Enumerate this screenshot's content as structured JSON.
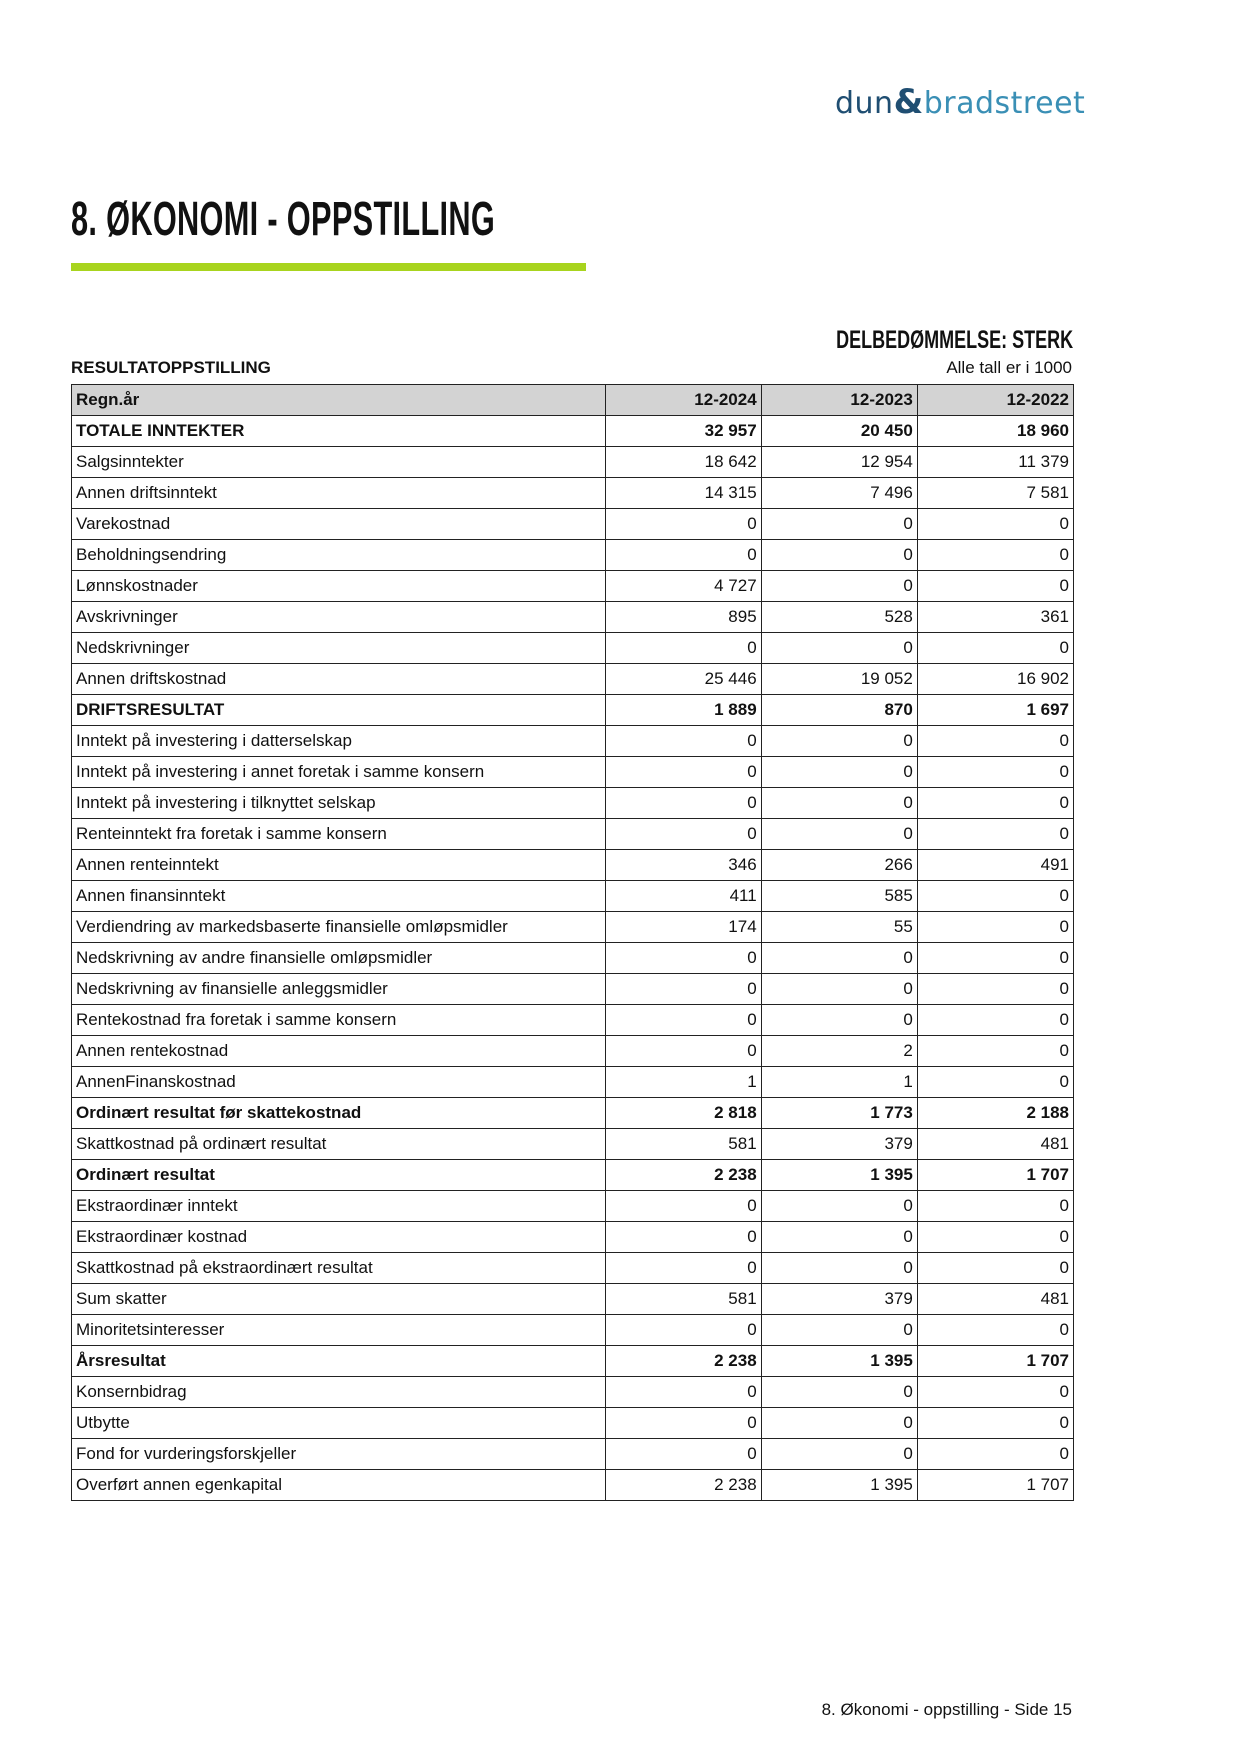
{
  "logo": {
    "text": "dun&bradstreet",
    "part1": "dun",
    "amp": "&",
    "part2": "bradstreet",
    "colors": {
      "dark": "#1f4e72",
      "light": "#3a8fb5"
    }
  },
  "page_title": "8. ØKONOMI - OPPSTILLING",
  "accent_color": "#a8d41e",
  "rating": "DELBEDØMMELSE: STERK",
  "section_title": "RESULTATOPPSTILLING",
  "units_note": "Alle tall er i 1000",
  "table": {
    "headers": [
      "Regn.år",
      "12-2024",
      "12-2023",
      "12-2022"
    ],
    "rows": [
      {
        "label": "TOTALE INNTEKTER",
        "bold": true,
        "values": [
          "32 957",
          "20 450",
          "18 960"
        ]
      },
      {
        "label": "Salgsinntekter",
        "values": [
          "18 642",
          "12 954",
          "11 379"
        ]
      },
      {
        "label": "Annen driftsinntekt",
        "values": [
          "14 315",
          "7 496",
          "7 581"
        ]
      },
      {
        "label": "Varekostnad",
        "values": [
          "0",
          "0",
          "0"
        ]
      },
      {
        "label": "Beholdningsendring",
        "values": [
          "0",
          "0",
          "0"
        ]
      },
      {
        "label": "Lønnskostnader",
        "values": [
          "4 727",
          "0",
          "0"
        ]
      },
      {
        "label": "Avskrivninger",
        "values": [
          "895",
          "528",
          "361"
        ]
      },
      {
        "label": "Nedskrivninger",
        "values": [
          "0",
          "0",
          "0"
        ]
      },
      {
        "label": "Annen driftskostnad",
        "values": [
          "25 446",
          "19 052",
          "16 902"
        ]
      },
      {
        "label": "DRIFTSRESULTAT",
        "bold": true,
        "values": [
          "1 889",
          "870",
          "1 697"
        ]
      },
      {
        "label": "Inntekt på investering i datterselskap",
        "values": [
          "0",
          "0",
          "0"
        ]
      },
      {
        "label": "Inntekt på investering i annet foretak i samme konsern",
        "values": [
          "0",
          "0",
          "0"
        ]
      },
      {
        "label": "Inntekt på investering i tilknyttet selskap",
        "values": [
          "0",
          "0",
          "0"
        ]
      },
      {
        "label": "Renteinntekt fra foretak i samme konsern",
        "values": [
          "0",
          "0",
          "0"
        ]
      },
      {
        "label": "Annen renteinntekt",
        "values": [
          "346",
          "266",
          "491"
        ]
      },
      {
        "label": "Annen finansinntekt",
        "values": [
          "411",
          "585",
          "0"
        ]
      },
      {
        "label": "Verdiendring av markedsbaserte finansielle omløpsmidler",
        "values": [
          "174",
          "55",
          "0"
        ]
      },
      {
        "label": "Nedskrivning av andre finansielle omløpsmidler",
        "values": [
          "0",
          "0",
          "0"
        ]
      },
      {
        "label": "Nedskrivning av finansielle anleggsmidler",
        "values": [
          "0",
          "0",
          "0"
        ]
      },
      {
        "label": "Rentekostnad fra foretak i samme konsern",
        "values": [
          "0",
          "0",
          "0"
        ]
      },
      {
        "label": "Annen rentekostnad",
        "values": [
          "0",
          "2",
          "0"
        ]
      },
      {
        "label": "AnnenFinanskostnad",
        "values": [
          "1",
          "1",
          "0"
        ]
      },
      {
        "label": "Ordinært resultat før skattekostnad",
        "bold": true,
        "values": [
          "2 818",
          "1 773",
          "2 188"
        ]
      },
      {
        "label": "Skattkostnad på ordinært resultat",
        "values": [
          "581",
          "379",
          "481"
        ]
      },
      {
        "label": "Ordinært resultat",
        "bold": true,
        "values": [
          "2 238",
          "1 395",
          "1 707"
        ]
      },
      {
        "label": "Ekstraordinær inntekt",
        "values": [
          "0",
          "0",
          "0"
        ]
      },
      {
        "label": "Ekstraordinær kostnad",
        "values": [
          "0",
          "0",
          "0"
        ]
      },
      {
        "label": "Skattkostnad på ekstraordinært resultat",
        "values": [
          "0",
          "0",
          "0"
        ]
      },
      {
        "label": "Sum skatter",
        "values": [
          "581",
          "379",
          "481"
        ]
      },
      {
        "label": "Minoritetsinteresser",
        "values": [
          "0",
          "0",
          "0"
        ]
      },
      {
        "label": "Årsresultat",
        "bold": true,
        "values": [
          "2 238",
          "1 395",
          "1 707"
        ]
      },
      {
        "label": "Konsernbidrag",
        "values": [
          "0",
          "0",
          "0"
        ]
      },
      {
        "label": "Utbytte",
        "values": [
          "0",
          "0",
          "0"
        ]
      },
      {
        "label": "Fond for vurderingsforskjeller",
        "values": [
          "0",
          "0",
          "0"
        ]
      },
      {
        "label": "Overført annen egenkapital",
        "values": [
          "2 238",
          "1 395",
          "1 707"
        ]
      }
    ]
  },
  "footer": "8. Økonomi - oppstilling - Side 15"
}
